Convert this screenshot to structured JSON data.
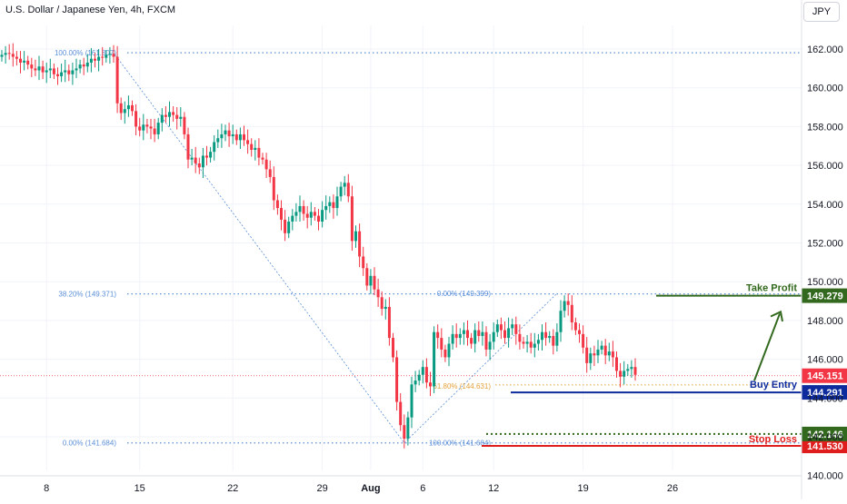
{
  "header": {
    "symbol_title": "U.S. Dollar / Japanese Yen, 4h, FXCM",
    "currency_button": "JPY"
  },
  "chart_data": {
    "type": "candlestick",
    "y_axis": {
      "side": "right",
      "ticks": [
        "162.000",
        "160.000",
        "158.000",
        "156.000",
        "154.000",
        "152.000",
        "150.000",
        "148.000",
        "146.000",
        "144.000",
        "142.000",
        "140.000"
      ],
      "tick_values": [
        162,
        160,
        158,
        156,
        154,
        152,
        150,
        148,
        146,
        144,
        142,
        140
      ],
      "ylim": [
        139.55,
        163.05
      ]
    },
    "x_axis": {
      "ticks": [
        {
          "label": "8",
          "i": 12
        },
        {
          "label": "15",
          "i": 37
        },
        {
          "label": "22",
          "i": 62
        },
        {
          "label": "29",
          "i": 86
        },
        {
          "label": "Aug",
          "i": 99,
          "bold": true
        },
        {
          "label": "6",
          "i": 113
        },
        {
          "label": "12",
          "i": 132
        },
        {
          "label": "19",
          "i": 156
        },
        {
          "label": "26",
          "i": 180
        }
      ]
    },
    "candles_close": [
      161.7,
      161.8,
      161.75,
      161.6,
      161.5,
      161.3,
      161.4,
      161.2,
      161.0,
      160.9,
      161.1,
      160.8,
      160.9,
      161.0,
      160.7,
      160.6,
      160.8,
      160.9,
      160.7,
      160.9,
      161.0,
      161.2,
      161.1,
      161.3,
      161.5,
      161.4,
      161.6,
      161.55,
      161.7,
      161.75,
      161.6,
      159.2,
      158.7,
      158.9,
      159.1,
      158.8,
      158.0,
      157.8,
      158.1,
      158.0,
      157.9,
      157.6,
      158.2,
      158.6,
      158.5,
      158.75,
      158.6,
      158.4,
      158.5,
      157.6,
      156.3,
      156.4,
      156.1,
      155.9,
      156.5,
      156.4,
      156.7,
      157.2,
      157.4,
      157.6,
      157.8,
      157.5,
      157.6,
      157.3,
      157.6,
      157.3,
      157.1,
      156.8,
      156.9,
      156.4,
      156.3,
      155.8,
      155.4,
      154.2,
      153.8,
      153.2,
      152.5,
      153.1,
      153.4,
      153.6,
      153.9,
      153.5,
      153.3,
      153.6,
      153.4,
      153.1,
      153.7,
      153.9,
      154.1,
      153.8,
      154.4,
      154.9,
      155.1,
      154.4,
      152.1,
      152.6,
      151.3,
      150.7,
      149.8,
      150.3,
      149.6,
      149.2,
      148.6,
      148.7,
      147.1,
      146.1,
      143.8,
      142.6,
      141.9,
      143.0,
      144.7,
      144.9,
      145.2,
      145.6,
      144.8,
      144.6,
      147.4,
      147.1,
      146.5,
      146.1,
      146.8,
      147.3,
      147.1,
      147.3,
      147.5,
      147.1,
      146.8,
      147.5,
      147.2,
      147.4,
      146.5,
      146.9,
      147.4,
      147.8,
      147.5,
      147.1,
      147.6,
      147.8,
      147.3,
      146.9,
      146.8,
      146.9,
      146.6,
      146.8,
      147.0,
      147.4,
      147.1,
      147.2,
      146.7,
      147.4,
      148.5,
      149.0,
      148.8,
      147.9,
      147.5,
      147.3,
      146.6,
      145.8,
      146.3,
      146.2,
      146.5,
      146.7,
      146.2,
      146.4,
      146.1,
      145.4,
      145.1,
      145.4,
      145.5,
      145.6,
      145.2
    ],
    "fibonacci_left": {
      "levels": [
        {
          "label": "100.00% (161.807)",
          "value": 161.807
        },
        {
          "label": "38.20% (149.371)",
          "value": 149.371
        },
        {
          "label": "0.00% (141.684)",
          "value": 141.684
        }
      ]
    },
    "fibonacci_right": {
      "levels": [
        {
          "label": "0.00% (149.399)",
          "value": 149.399
        },
        {
          "label": "61.80% (144.631)",
          "value": 144.631
        },
        {
          "label": "100.00% (141.684)",
          "value": 141.684
        }
      ]
    },
    "trade_levels": {
      "take_profit": {
        "label": "Take Profit",
        "value": 149.279,
        "price_label": "149.279",
        "color": "#33691e"
      },
      "buy_entry": {
        "label": "Buy Entry",
        "value": 144.291,
        "price_label": "144.291",
        "color": "#0d2b9c"
      },
      "stop_loss": {
        "label": "Stop Loss",
        "value": 141.53,
        "price_label": "141.530",
        "color": "#e01d1d"
      },
      "green_dotted": {
        "value": 142.146,
        "price_label": "142.146",
        "color": "#33691e"
      }
    },
    "last_price": {
      "value": 145.151,
      "price_label": "145.151",
      "color": "#f23645"
    },
    "colors": {
      "up": "#089981",
      "down": "#f23645",
      "grid": "#f0f3fa",
      "fib": "#5b8fd6",
      "fib_orange": "#e2a13a"
    }
  }
}
